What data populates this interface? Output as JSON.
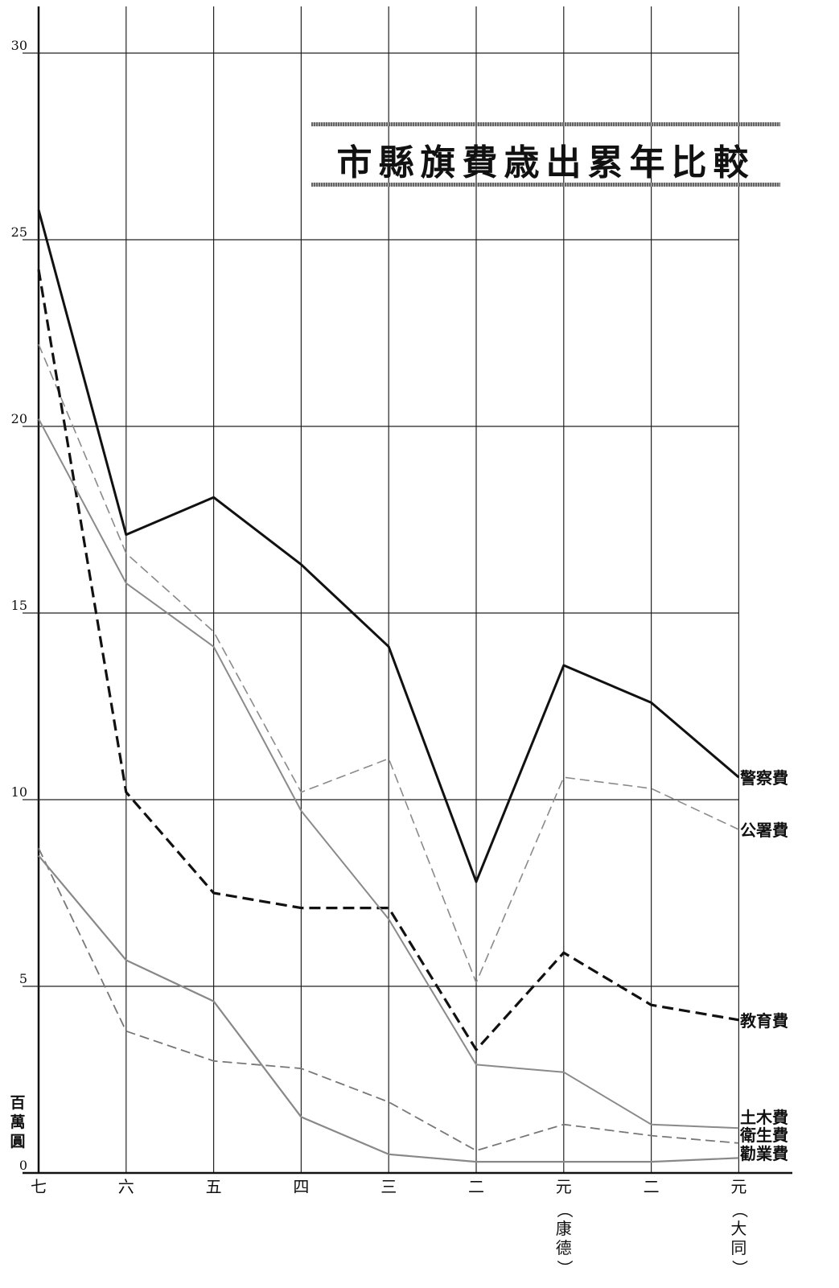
{
  "chart_data": {
    "type": "line",
    "title": "市縣旗費歳出累年比較",
    "unit_label": "百萬圓",
    "categories": [
      "七",
      "六",
      "五",
      "四",
      "三",
      "二",
      "元(康德)",
      "二",
      "元(大同)"
    ],
    "category_labels": [
      {
        "main": "七",
        "sub": ""
      },
      {
        "main": "六",
        "sub": ""
      },
      {
        "main": "五",
        "sub": ""
      },
      {
        "main": "四",
        "sub": ""
      },
      {
        "main": "三",
        "sub": ""
      },
      {
        "main": "二",
        "sub": ""
      },
      {
        "main": "元",
        "sub": "（康德）"
      },
      {
        "main": "二",
        "sub": ""
      },
      {
        "main": "元",
        "sub": "（大同）"
      }
    ],
    "ylim": [
      0,
      30
    ],
    "yticks": [
      0,
      5,
      10,
      15,
      20,
      25,
      30
    ],
    "grid": true,
    "series": [
      {
        "name": "警察費",
        "style": "solid-bold",
        "color": "#111111",
        "values": [
          25.8,
          17.1,
          18.1,
          16.3,
          14.1,
          7.8,
          13.6,
          12.6,
          10.6
        ]
      },
      {
        "name": "公署費",
        "style": "dashed-light",
        "color": "#8a8a8a",
        "values": [
          22.2,
          16.6,
          14.5,
          10.2,
          11.1,
          5.1,
          10.6,
          10.3,
          9.2
        ]
      },
      {
        "name": "教育費",
        "style": "dashed-bold",
        "color": "#111111",
        "values": [
          24.2,
          10.2,
          7.5,
          7.1,
          7.1,
          3.3,
          5.9,
          4.5,
          4.1
        ]
      },
      {
        "name": "土木費",
        "style": "solid-light",
        "color": "#8a8a8a",
        "values": [
          20.2,
          15.8,
          14.1,
          9.7,
          6.8,
          2.9,
          2.7,
          1.3,
          1.2
        ]
      },
      {
        "name": "衛生費",
        "style": "dashed-medium",
        "color": "#777777",
        "values": [
          8.7,
          3.8,
          3.0,
          2.8,
          1.9,
          0.6,
          1.3,
          1.0,
          0.8
        ]
      },
      {
        "name": "勸業費",
        "style": "solid-medium",
        "color": "#888888",
        "values": [
          8.5,
          5.7,
          4.6,
          1.5,
          0.5,
          0.3,
          0.3,
          0.3,
          0.4
        ]
      }
    ]
  }
}
